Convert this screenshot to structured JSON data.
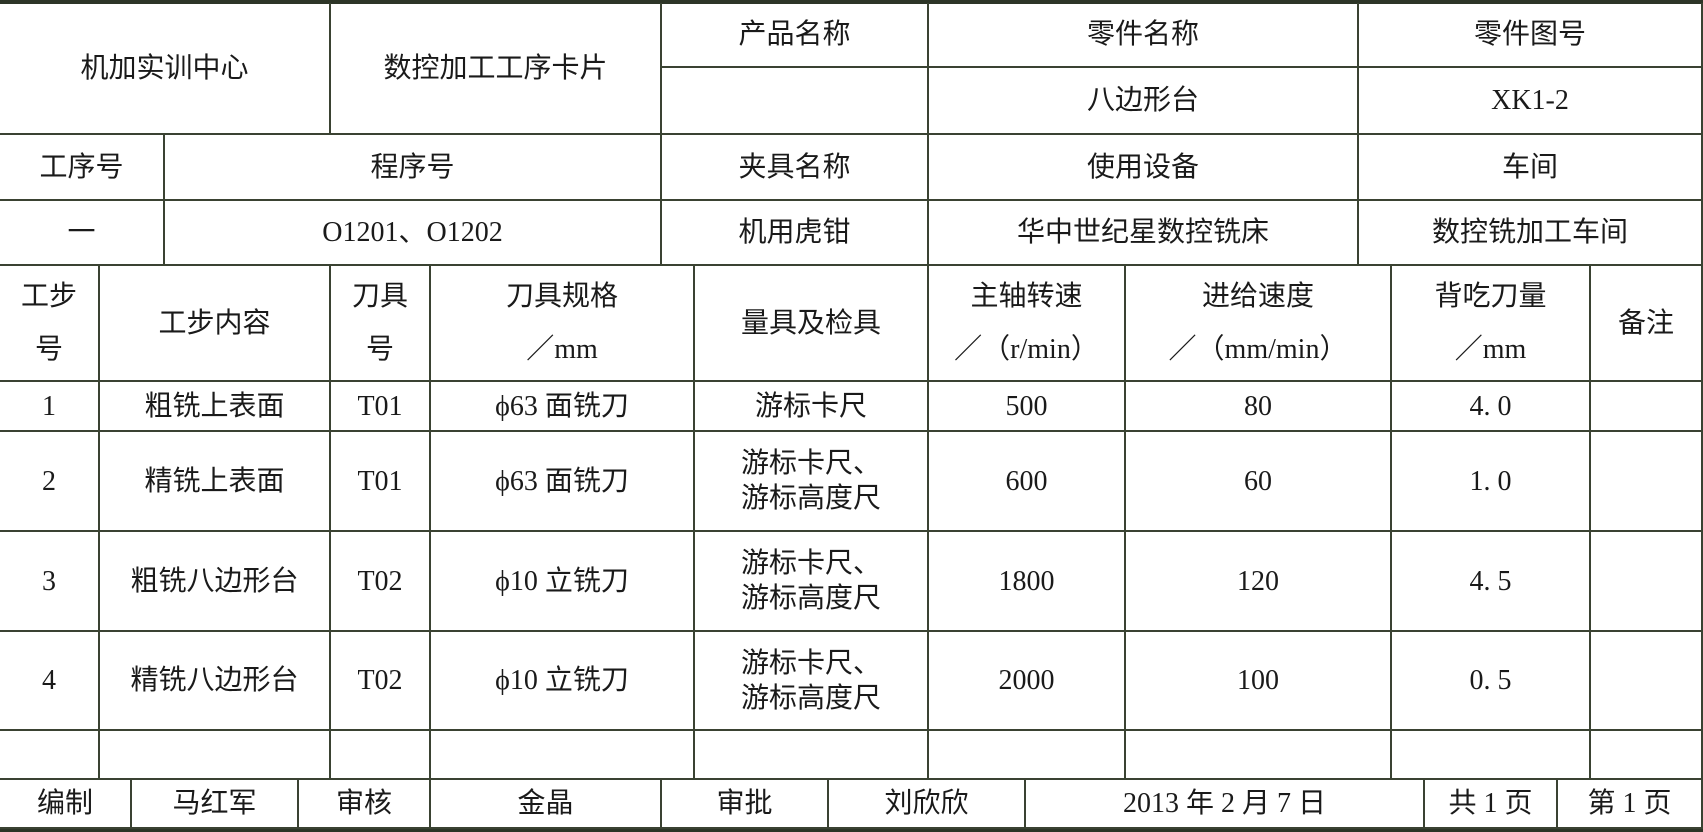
{
  "header": {
    "org": "机加实训中心",
    "card_title": "数控加工工序卡片",
    "product_name_label": "产品名称",
    "product_name_value": "",
    "part_name_label": "零件名称",
    "part_name_value": "八边形台",
    "part_no_label": "零件图号",
    "part_no_value": "XK1-2"
  },
  "process": {
    "labels": [
      "工序号",
      "程序号",
      "夹具名称",
      "使用设备",
      "车间"
    ],
    "values": [
      "一",
      "O1201、O1202",
      "机用虎钳",
      "华中世纪星数控铣床",
      "数控铣加工车间"
    ]
  },
  "steps": {
    "columns": [
      {
        "line1": "工步",
        "line2": "号"
      },
      {
        "line1": "工步内容",
        "line2": ""
      },
      {
        "line1": "刀具",
        "line2": "号"
      },
      {
        "line1": "刀具规格",
        "line2": "／mm"
      },
      {
        "line1": "量具及检具",
        "line2": ""
      },
      {
        "line1": "主轴转速",
        "line2": "／（r/min）"
      },
      {
        "line1": "进给速度",
        "line2": "／（mm/min）"
      },
      {
        "line1": "背吃刀量",
        "line2": "／mm"
      },
      {
        "line1": "备注",
        "line2": ""
      }
    ],
    "rows": [
      [
        "1",
        "粗铣上表面",
        "T01",
        "ϕ63 面铣刀",
        "游标卡尺",
        "500",
        "80",
        "4. 0",
        ""
      ],
      [
        "2",
        "精铣上表面",
        "T01",
        "ϕ63 面铣刀",
        "游标卡尺、\n游标高度尺",
        "600",
        "60",
        "1. 0",
        ""
      ],
      [
        "3",
        "粗铣八边形台",
        "T02",
        "ϕ10 立铣刀",
        "游标卡尺、\n游标高度尺",
        "1800",
        "120",
        "4. 5",
        ""
      ],
      [
        "4",
        "精铣八边形台",
        "T02",
        "ϕ10 立铣刀",
        "游标卡尺、\n游标高度尺",
        "2000",
        "100",
        "0. 5",
        ""
      ],
      [
        "",
        "",
        "",
        "",
        "",
        "",
        "",
        "",
        ""
      ]
    ]
  },
  "footer": {
    "items": [
      "编制",
      "马红军",
      "审核",
      "金晶",
      "审批",
      "刘欣欣",
      "2013 年 2 月 7 日",
      "共 1 页",
      "第 1 页"
    ]
  }
}
